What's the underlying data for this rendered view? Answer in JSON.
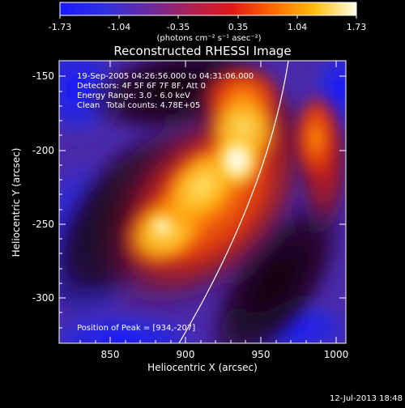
{
  "colorbar": {
    "ticks": [
      "-1.73",
      "-1.04",
      "-0.35",
      "0.35",
      "1.04",
      "1.73"
    ],
    "units": "(photons cm⁻² s⁻¹ asec⁻²)",
    "range": [
      -1.73,
      1.73
    ]
  },
  "title": "Reconstructed RHESSI Image",
  "info": {
    "line1": "19-Sep-2005 04:26:56.000 to 04:31:06.000",
    "line2": "Detectors: 4F 5F 6F 7F 8F, Att 0",
    "line3": "Energy Range: 3.0 - 6.0 keV",
    "line4_a": "Clean",
    "line4_b": "Total counts: 4.78E+05"
  },
  "peak_label": "Position of Peak = [934,-207]",
  "axes": {
    "xlabel": "Heliocentric X (arcsec)",
    "ylabel": "Heliocentric Y (arcsec)",
    "xticks": [
      "850",
      "900",
      "950",
      "1000"
    ],
    "yticks": [
      "-150",
      "-200",
      "-250",
      "-300"
    ],
    "xrange": [
      817,
      1007
    ],
    "yrange": [
      -330,
      -130
    ]
  },
  "timestamp": "12-Jul-2013 18:48"
}
